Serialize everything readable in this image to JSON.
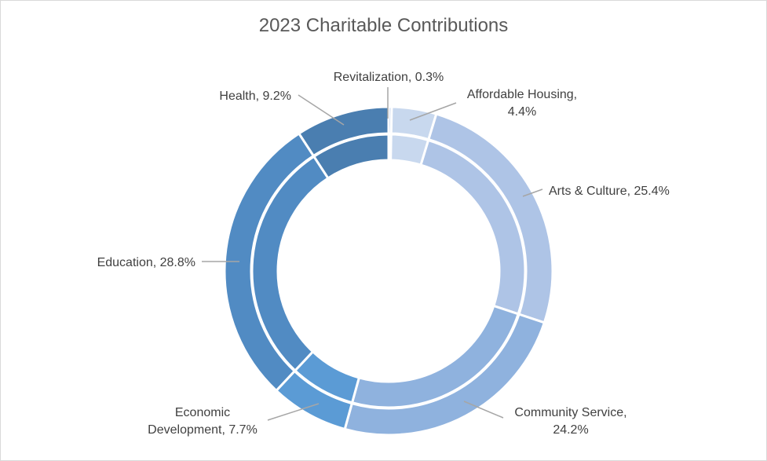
{
  "chart_data": {
    "type": "pie",
    "subtype": "double-ring donut",
    "title": "2023 Charitable Contributions",
    "categories": [
      "Revitalization",
      "Affordable Housing",
      "Arts & Culture",
      "Community Service",
      "Economic Development",
      "Education",
      "Health"
    ],
    "values": [
      0.3,
      4.4,
      25.4,
      24.2,
      7.7,
      28.8,
      9.2
    ],
    "unit": "%",
    "rings": [
      {
        "values": [
          0.3,
          4.4,
          25.4,
          24.2,
          7.7,
          28.8,
          9.2
        ]
      },
      {
        "values": [
          0.3,
          4.4,
          25.4,
          24.2,
          7.7,
          28.8,
          9.2
        ]
      }
    ],
    "colors": [
      "#b4c7e7",
      "#c8d8ee",
      "#aec4e6",
      "#8fb2de",
      "#5b9bd5",
      "#518bc3",
      "#4a7eb0"
    ],
    "data_labels": [
      {
        "lines": [
          "Revitalization, 0.3%"
        ]
      },
      {
        "lines": [
          "Affordable Housing,",
          "4.4%"
        ]
      },
      {
        "lines": [
          "Arts & Culture, 25.4%"
        ]
      },
      {
        "lines": [
          "Community Service,",
          "24.2%"
        ]
      },
      {
        "lines": [
          "Economic",
          "Development, 7.7%"
        ]
      },
      {
        "lines": [
          "Education, 28.8%"
        ]
      },
      {
        "lines": [
          "Health, 9.2%"
        ]
      }
    ],
    "legend": "none"
  }
}
